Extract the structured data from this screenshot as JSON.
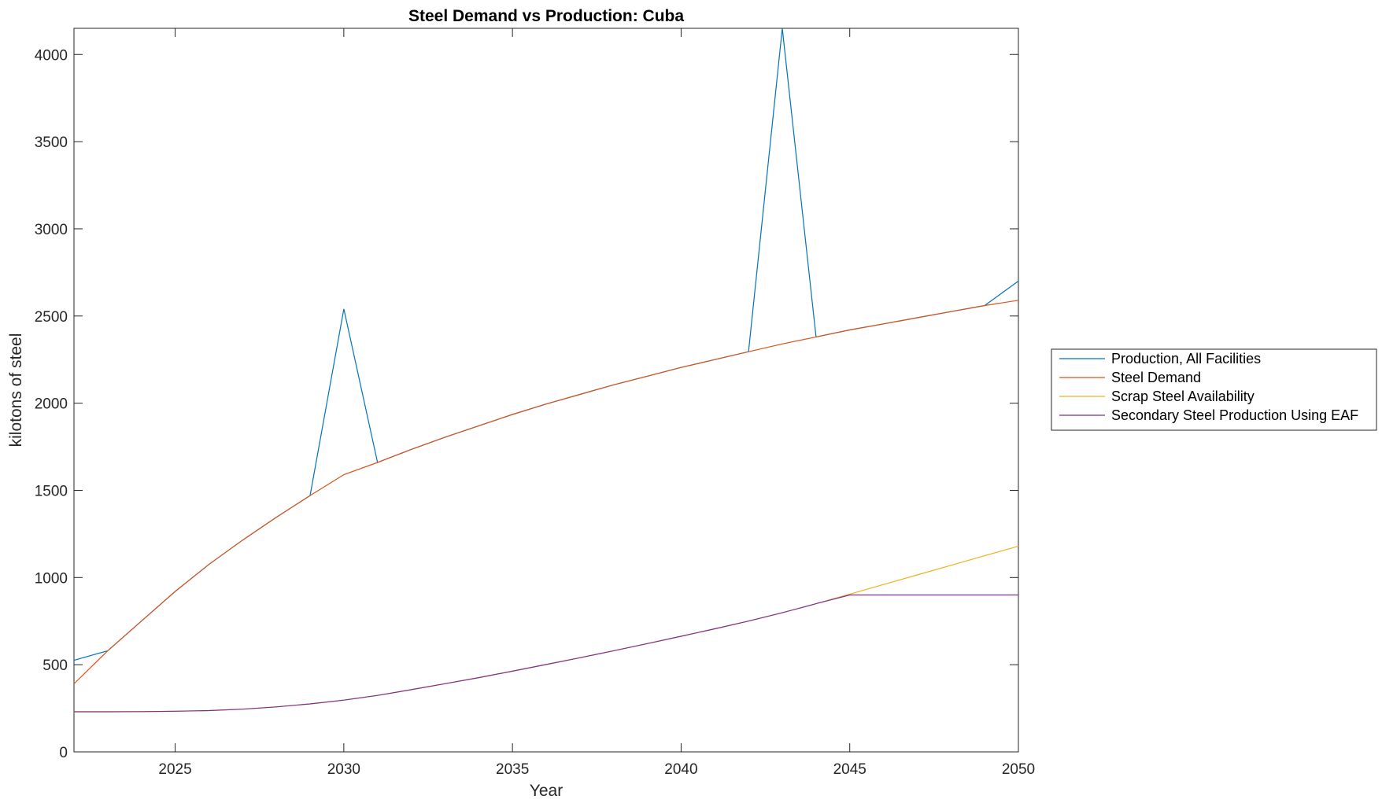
{
  "chart_data": {
    "type": "line",
    "title": "Steel Demand vs Production: Cuba",
    "xlabel": "Year",
    "ylabel": "kilotons of steel",
    "xlim": [
      2022,
      2050
    ],
    "ylim": [
      0,
      4150
    ],
    "xticks": [
      2025,
      2030,
      2035,
      2040,
      2045,
      2050
    ],
    "yticks": [
      0,
      500,
      1000,
      1500,
      2000,
      2500,
      3000,
      3500,
      4000
    ],
    "grid": false,
    "legend_position": "outside-right",
    "x": [
      2022,
      2023,
      2024,
      2025,
      2026,
      2027,
      2028,
      2029,
      2030,
      2031,
      2032,
      2033,
      2034,
      2035,
      2036,
      2037,
      2038,
      2039,
      2040,
      2041,
      2042,
      2043,
      2044,
      2045,
      2046,
      2047,
      2048,
      2049,
      2050
    ],
    "series": [
      {
        "name": "Production, All Facilities",
        "color": "#0072BD",
        "values": [
          525,
          580,
          750,
          920,
          1075,
          1215,
          1345,
          1470,
          2540,
          1660,
          1735,
          1805,
          1870,
          1935,
          1995,
          2050,
          2105,
          2155,
          2205,
          2250,
          2295,
          4150,
          2380,
          2420,
          2455,
          2490,
          2525,
          2560,
          2700
        ]
      },
      {
        "name": "Steel Demand",
        "color": "#D95319",
        "values": [
          390,
          580,
          750,
          920,
          1075,
          1215,
          1345,
          1470,
          1590,
          1660,
          1735,
          1805,
          1870,
          1935,
          1995,
          2050,
          2105,
          2155,
          2205,
          2250,
          2295,
          2340,
          2380,
          2420,
          2455,
          2490,
          2525,
          2560,
          2590
        ]
      },
      {
        "name": "Scrap Steel Availability",
        "color": "#EDB120",
        "values": [
          230,
          230,
          231,
          233,
          237,
          245,
          258,
          275,
          297,
          324,
          357,
          391,
          426,
          463,
          501,
          540,
          580,
          621,
          663,
          706,
          750,
          798,
          850,
          905,
          960,
          1015,
          1070,
          1125,
          1180
        ]
      },
      {
        "name": "Secondary Steel Production Using EAF",
        "color": "#7E2F8E",
        "values": [
          230,
          230,
          231,
          233,
          237,
          245,
          258,
          275,
          297,
          324,
          357,
          391,
          426,
          463,
          501,
          540,
          580,
          621,
          663,
          706,
          750,
          798,
          850,
          900,
          900,
          900,
          900,
          900,
          900
        ]
      }
    ]
  }
}
